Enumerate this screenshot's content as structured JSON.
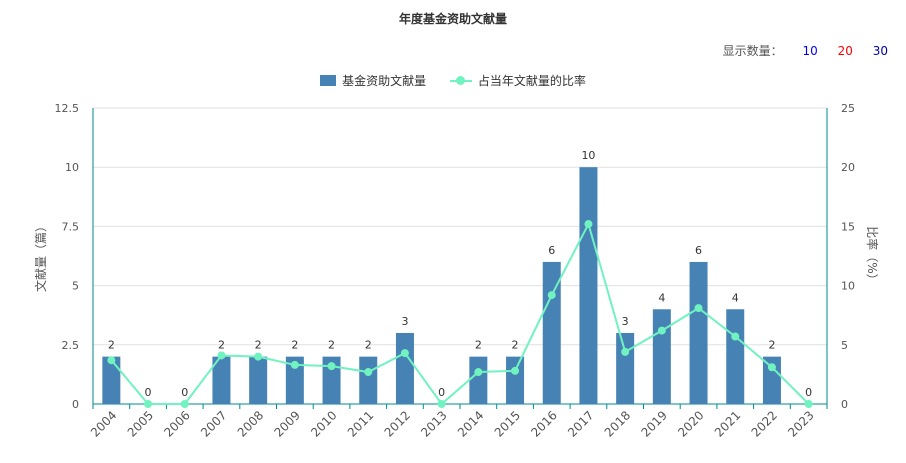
{
  "title": "年度基金资助文献量",
  "display_count": {
    "label": "显示数量：",
    "options": [
      "10",
      "20",
      "30"
    ]
  },
  "colors": {
    "bar": "#4682b4",
    "line": "#70f3c0",
    "axis": "#008b8b",
    "grid": "#e0e0e0",
    "text": "#555555"
  },
  "chart_data": {
    "type": "bar",
    "categories": [
      "2004",
      "2005",
      "2006",
      "2007",
      "2008",
      "2009",
      "2010",
      "2011",
      "2012",
      "2013",
      "2014",
      "2015",
      "2016",
      "2017",
      "2018",
      "2019",
      "2020",
      "2021",
      "2022",
      "2023"
    ],
    "series": [
      {
        "name": "基金资助文献量",
        "type": "bar",
        "axis": "left",
        "values": [
          2,
          0,
          0,
          2,
          2,
          2,
          2,
          2,
          3,
          0,
          2,
          2,
          6,
          10,
          3,
          4,
          6,
          4,
          2,
          0
        ]
      },
      {
        "name": "占当年文献量的比率",
        "type": "line",
        "axis": "right",
        "values": [
          3.7,
          0,
          0,
          4.1,
          4.0,
          3.3,
          3.2,
          2.7,
          4.3,
          0,
          2.7,
          2.8,
          9.2,
          15.2,
          4.4,
          6.2,
          8.1,
          5.7,
          3.1,
          0
        ]
      }
    ],
    "ylabel": "文献量（篇）",
    "y2label": "比率（%）",
    "ylim": [
      0,
      12.5
    ],
    "y2lim": [
      0,
      25
    ],
    "yticks": [
      "0",
      "2.5",
      "5",
      "7.5",
      "10",
      "12.5"
    ],
    "y2ticks": [
      "0",
      "5",
      "10",
      "15",
      "20",
      "25"
    ],
    "grid": true,
    "legend": "top-center",
    "data_labels": true
  }
}
